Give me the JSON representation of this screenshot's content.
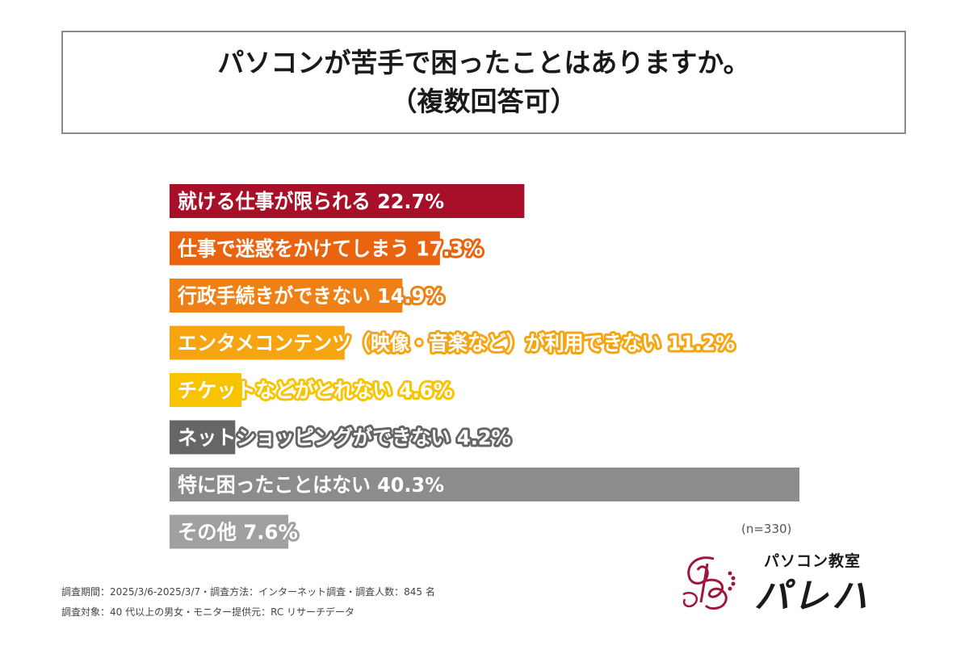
{
  "title": {
    "line1": "パソコンが苦手で困ったことはありますか。",
    "line2": "（複数回答可）"
  },
  "chart_data": {
    "type": "bar",
    "orientation": "horizontal",
    "xlim": [
      0,
      40.3
    ],
    "bars": [
      {
        "label": "就ける仕事が限られる",
        "value": 22.7,
        "value_text": "22.7%",
        "color": "#a8102a"
      },
      {
        "label": "仕事で迷惑をかけてしまう",
        "value": 17.3,
        "value_text": "17.3%",
        "color": "#ea6410"
      },
      {
        "label": "行政手続きができない",
        "value": 14.9,
        "value_text": "14.9%",
        "color": "#ef8015"
      },
      {
        "label": "エンタメコンテンツ（映像・音楽など）が利用できない",
        "value": 11.2,
        "value_text": "11.2%",
        "color": "#f6a510"
      },
      {
        "label": "チケットなどがとれない",
        "value": 4.6,
        "value_text": "4.6%",
        "color": "#f8c300"
      },
      {
        "label": "ネットショッピングができない",
        "value": 4.2,
        "value_text": "4.2%",
        "color": "#666666"
      },
      {
        "label": "特に困ったことはない",
        "value": 40.3,
        "value_text": "40.3%",
        "color": "#8c8c8c"
      },
      {
        "label": "その他",
        "value": 7.6,
        "value_text": "7.6%",
        "color": "#a0a0a0"
      }
    ]
  },
  "sample_note": "(n=330)",
  "footnotes": {
    "line1": "調査期間：2025/3/6-2025/3/7・調査方法：インターネット調査・調査人数：845 名",
    "line2": "調査対象：40 代以上の男女・モニター提供元：RC リサーチデータ"
  },
  "logo": {
    "subtitle": "パソコン教室",
    "name": "パレハ",
    "color": "#a0163a"
  }
}
